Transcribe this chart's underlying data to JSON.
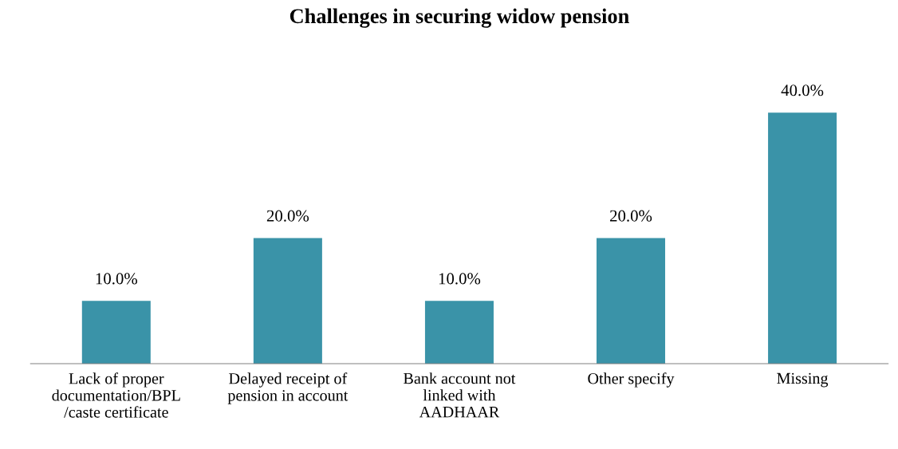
{
  "chart_data": {
    "type": "bar",
    "title": "Challenges in securing widow pension",
    "categories": [
      "Lack of proper\ndocumentation/BPL\n/caste certificate",
      "Delayed receipt of\npension in account",
      "Bank account not\nlinked with\nAADHAAR",
      "Other specify",
      "Missing"
    ],
    "values": [
      10,
      20,
      10,
      20,
      40
    ],
    "value_labels": [
      "10.0%",
      "20.0%",
      "10.0%",
      "20.0%",
      "40.0%"
    ],
    "color": "#3a93a8",
    "grid": false,
    "legend": false
  }
}
